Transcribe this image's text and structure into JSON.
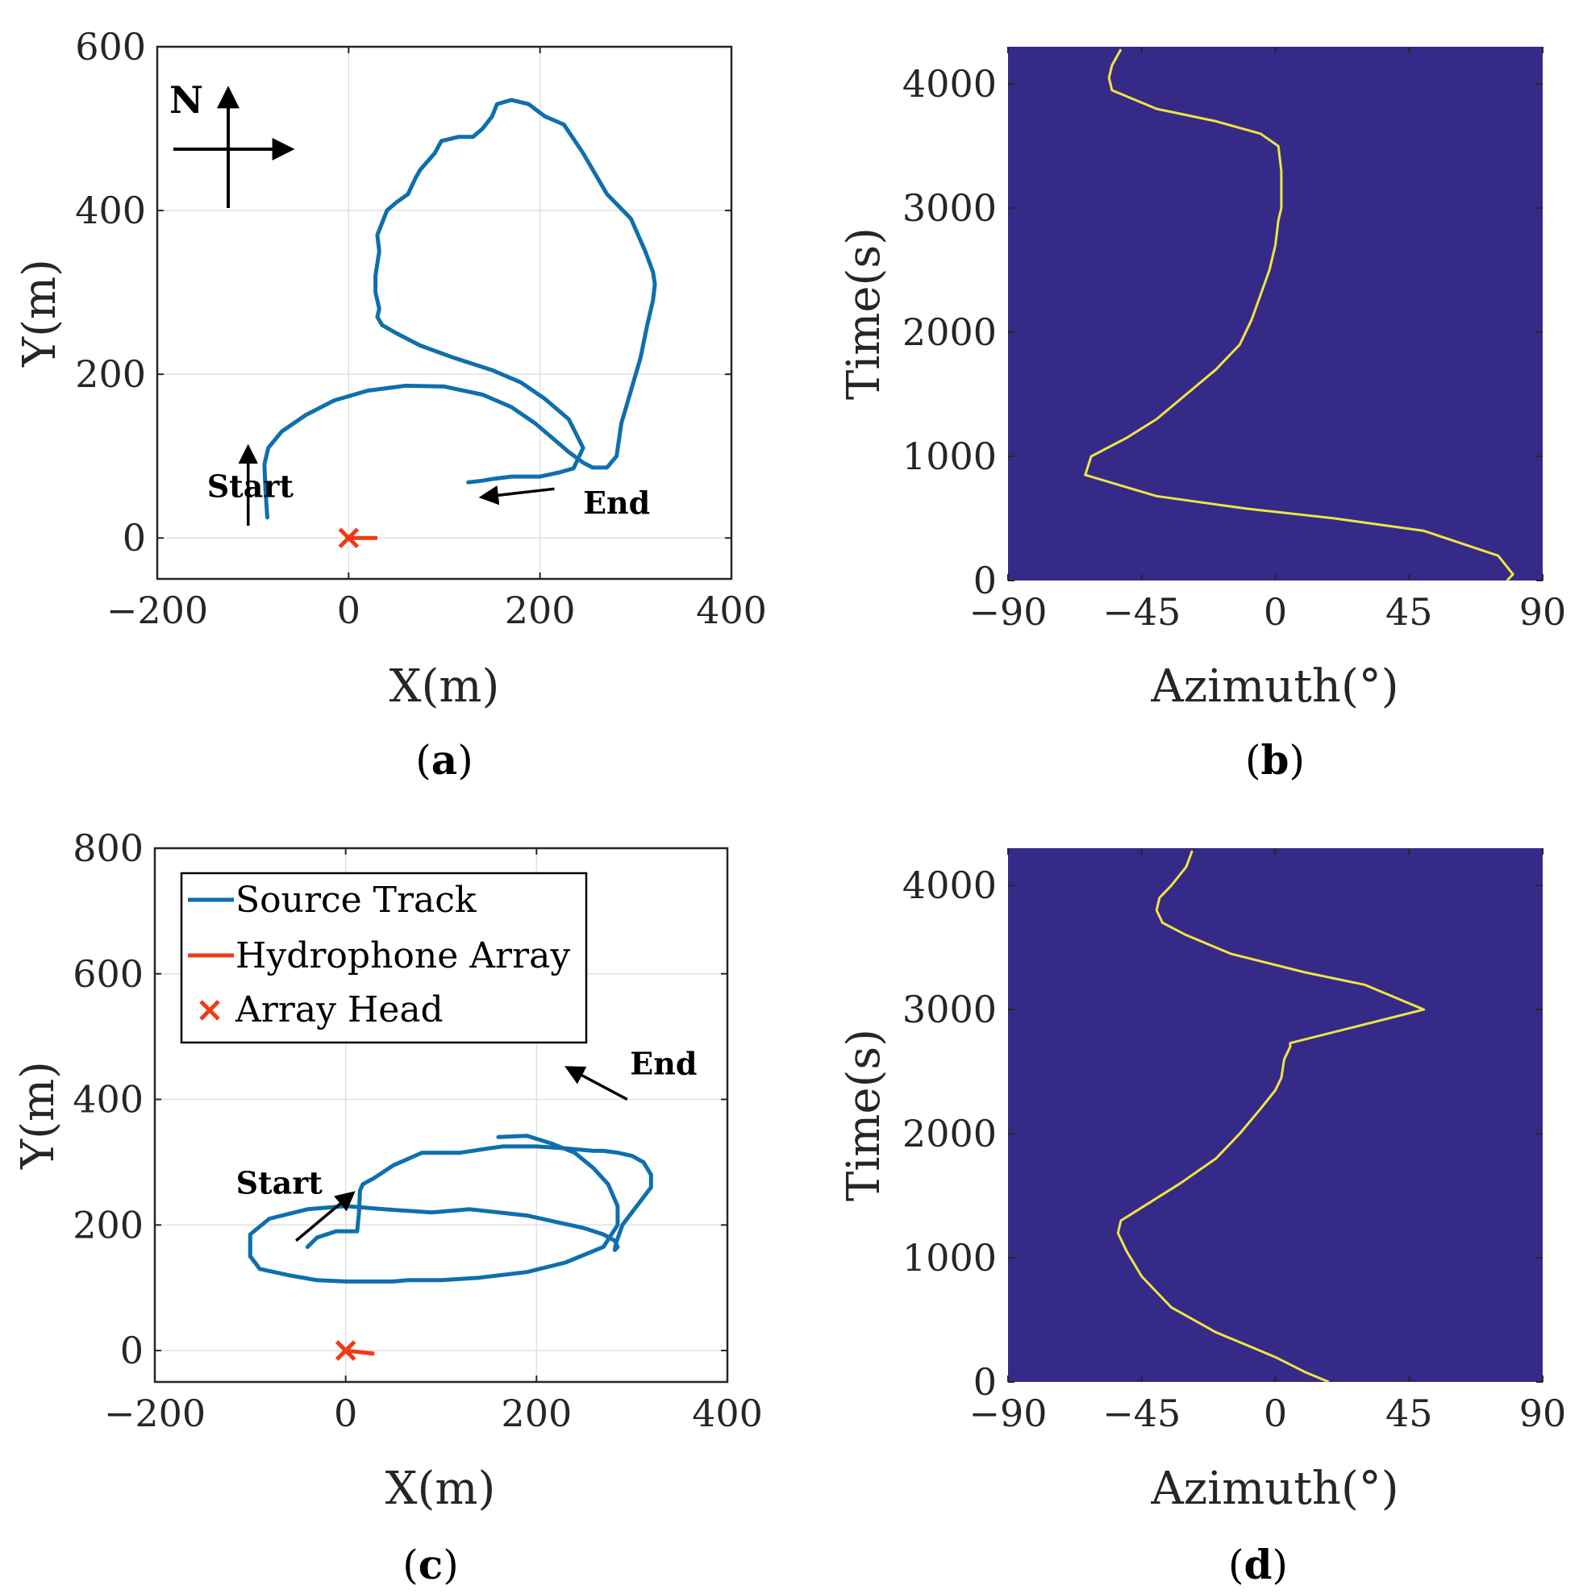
{
  "figure": {
    "panel_labels": [
      {
        "open": "(",
        "letter": "a",
        "close": ")"
      },
      {
        "open": "(",
        "letter": "b",
        "close": ")"
      },
      {
        "open": "(",
        "letter": "c",
        "close": ")"
      },
      {
        "open": "(",
        "letter": "d",
        "close": ")"
      }
    ],
    "north_label": "N",
    "colors": {
      "track": "#0e6fad",
      "array": "#f03a17",
      "heatmap_bg": "#352a87",
      "azimuth_line": "#f0e442",
      "grid": "#e0e0e0",
      "axis": "#262626"
    },
    "legend": [
      {
        "label": "Source Track",
        "marker": "line",
        "color": "#0e6fad"
      },
      {
        "label": "Hydrophone Array",
        "marker": "line",
        "color": "#f03a17"
      },
      {
        "label": "Array Head",
        "marker": "cross",
        "color": "#f03a17"
      }
    ]
  },
  "chart_data": [
    {
      "id": "a",
      "type": "line",
      "title": "",
      "xlabel": "X(m)",
      "ylabel": "Y(m)",
      "xlim": [
        -200,
        400
      ],
      "ylim": [
        -50,
        600
      ],
      "xticks": [
        -200,
        0,
        200,
        400
      ],
      "xtick_labels": [
        "−200",
        "0",
        "200",
        "400"
      ],
      "yticks": [
        0,
        200,
        400,
        600
      ],
      "ytick_labels": [
        "0",
        "200",
        "400",
        "600"
      ],
      "grid": true,
      "series": [
        {
          "name": "Source Track",
          "x": [
            -85,
            -87,
            -88,
            -84,
            -70,
            -45,
            -15,
            20,
            60,
            100,
            140,
            170,
            195,
            215,
            230,
            245,
            255,
            270,
            280,
            285,
            295,
            305,
            312,
            318,
            320,
            318,
            310,
            295,
            270,
            245,
            225,
            205,
            188,
            170,
            155,
            150,
            140,
            130,
            115,
            97,
            90,
            75,
            70,
            62,
            50,
            40,
            35,
            30,
            32,
            30,
            28,
            28,
            32,
            30,
            35,
            50,
            75,
            110,
            150,
            180,
            205,
            230,
            245,
            235,
            220,
            200,
            170,
            150,
            140,
            125
          ],
          "y": [
            25,
            60,
            90,
            110,
            130,
            150,
            168,
            180,
            186,
            185,
            175,
            160,
            140,
            120,
            105,
            92,
            86,
            86,
            100,
            140,
            180,
            220,
            260,
            290,
            310,
            325,
            350,
            390,
            420,
            470,
            505,
            515,
            530,
            535,
            530,
            515,
            500,
            490,
            490,
            485,
            470,
            450,
            440,
            420,
            410,
            400,
            385,
            370,
            350,
            335,
            320,
            300,
            280,
            270,
            260,
            250,
            235,
            220,
            205,
            190,
            170,
            145,
            110,
            85,
            80,
            75,
            75,
            72,
            70,
            68
          ]
        }
      ],
      "array": {
        "head": [
          0,
          0
        ],
        "tail": [
          30,
          0
        ]
      },
      "annotations": [
        {
          "text": "Start",
          "arrow_from": [
            -105,
            15
          ],
          "arrow_to": [
            -105,
            110
          ],
          "text_at": [
            -148,
            50
          ]
        },
        {
          "text": "End",
          "arrow_from": [
            215,
            60
          ],
          "arrow_to": [
            140,
            50
          ],
          "text_at": [
            245,
            30
          ]
        }
      ]
    },
    {
      "id": "b",
      "type": "heatmap",
      "title": "",
      "xlabel": "Azimuth(°)",
      "ylabel": "Time(s)",
      "xlim": [
        -90,
        90
      ],
      "ylim": [
        0,
        4300
      ],
      "xticks": [
        -90,
        -45,
        0,
        45,
        90
      ],
      "xtick_labels": [
        "−90",
        "−45",
        "0",
        "45",
        "90"
      ],
      "yticks": [
        0,
        1000,
        2000,
        3000,
        4000
      ],
      "ytick_labels": [
        "0",
        "1000",
        "2000",
        "3000",
        "4000"
      ],
      "grid": false,
      "series": [
        {
          "name": "Azimuth",
          "x": [
            78,
            80,
            75,
            50,
            20,
            -10,
            -40,
            -64,
            -62,
            -50,
            -40,
            -30,
            -20,
            -12,
            -8,
            -5,
            -2,
            0,
            1,
            2,
            2,
            1,
            -5,
            -20,
            -40,
            -55,
            -56,
            -55,
            -52
          ],
          "y": [
            0,
            50,
            200,
            400,
            500,
            580,
            680,
            850,
            1000,
            1150,
            1300,
            1500,
            1700,
            1900,
            2100,
            2300,
            2500,
            2700,
            2900,
            3000,
            3300,
            3500,
            3600,
            3700,
            3800,
            3950,
            4050,
            4150,
            4280
          ]
        }
      ]
    },
    {
      "id": "c",
      "type": "line",
      "title": "",
      "xlabel": "X(m)",
      "ylabel": "Y(m)",
      "xlim": [
        -200,
        400
      ],
      "ylim": [
        -50,
        800
      ],
      "xticks": [
        -200,
        0,
        200,
        400
      ],
      "xtick_labels": [
        "−200",
        "0",
        "200",
        "400"
      ],
      "yticks": [
        0,
        200,
        400,
        600,
        800
      ],
      "ytick_labels": [
        "0",
        "200",
        "400",
        "600",
        "800"
      ],
      "grid": true,
      "series": [
        {
          "name": "Source Track",
          "x": [
            -40,
            -30,
            -10,
            12,
            14,
            15,
            18,
            30,
            50,
            80,
            120,
            150,
            165,
            200,
            230,
            260,
            270,
            285,
            300,
            312,
            320,
            320,
            305,
            290,
            283,
            282,
            285,
            282,
            270,
            250,
            220,
            190,
            160,
            130,
            90,
            40,
            0,
            -40,
            -80,
            -100,
            -100,
            -90,
            -60,
            -30,
            0,
            30,
            50,
            65,
            80,
            100,
            140,
            190,
            230,
            270,
            285,
            285,
            275,
            260,
            240,
            215,
            190,
            160
          ],
          "y": [
            165,
            180,
            190,
            190,
            220,
            255,
            265,
            275,
            295,
            315,
            315,
            322,
            325,
            325,
            322,
            318,
            318,
            315,
            310,
            300,
            280,
            260,
            230,
            200,
            170,
            160,
            165,
            175,
            185,
            195,
            205,
            215,
            220,
            225,
            220,
            225,
            230,
            225,
            210,
            185,
            150,
            130,
            120,
            112,
            110,
            110,
            110,
            112,
            112,
            112,
            116,
            125,
            140,
            165,
            200,
            230,
            265,
            290,
            315,
            330,
            342,
            340
          ]
        }
      ],
      "array": {
        "head": [
          0,
          0
        ],
        "tail": [
          30,
          -5
        ]
      },
      "annotations": [
        {
          "text": "Start",
          "arrow_from": [
            -52,
            175
          ],
          "arrow_to": [
            7,
            250
          ],
          "text_at": [
            -115,
            250
          ]
        },
        {
          "text": "End",
          "arrow_from": [
            295,
            400
          ],
          "arrow_to": [
            233,
            450
          ],
          "text_at": [
            298,
            440
          ]
        }
      ]
    },
    {
      "id": "d",
      "type": "heatmap",
      "title": "",
      "xlabel": "Azimuth(°)",
      "ylabel": "Time(s)",
      "xlim": [
        -90,
        90
      ],
      "ylim": [
        0,
        4300
      ],
      "xticks": [
        -90,
        -45,
        0,
        45,
        90
      ],
      "xtick_labels": [
        "−90",
        "−45",
        "0",
        "45",
        "90"
      ],
      "yticks": [
        0,
        1000,
        2000,
        3000,
        4000
      ],
      "ytick_labels": [
        "0",
        "1000",
        "2000",
        "3000",
        "4000"
      ],
      "grid": false,
      "series": [
        {
          "name": "Azimuth",
          "x": [
            18,
            10,
            0,
            -10,
            -20,
            -35,
            -45,
            -50,
            -53,
            -52,
            -42,
            -32,
            -20,
            -12,
            -5,
            0,
            2,
            3,
            5,
            5,
            50,
            30,
            10,
            -15,
            -30,
            -38,
            -40,
            -39,
            -35,
            -30,
            -28
          ],
          "y": [
            0,
            80,
            200,
            300,
            400,
            600,
            850,
            1050,
            1200,
            1300,
            1450,
            1600,
            1800,
            2000,
            2200,
            2350,
            2450,
            2600,
            2700,
            2730,
            3000,
            3200,
            3300,
            3450,
            3600,
            3700,
            3800,
            3900,
            4000,
            4150,
            4280
          ]
        }
      ]
    }
  ]
}
